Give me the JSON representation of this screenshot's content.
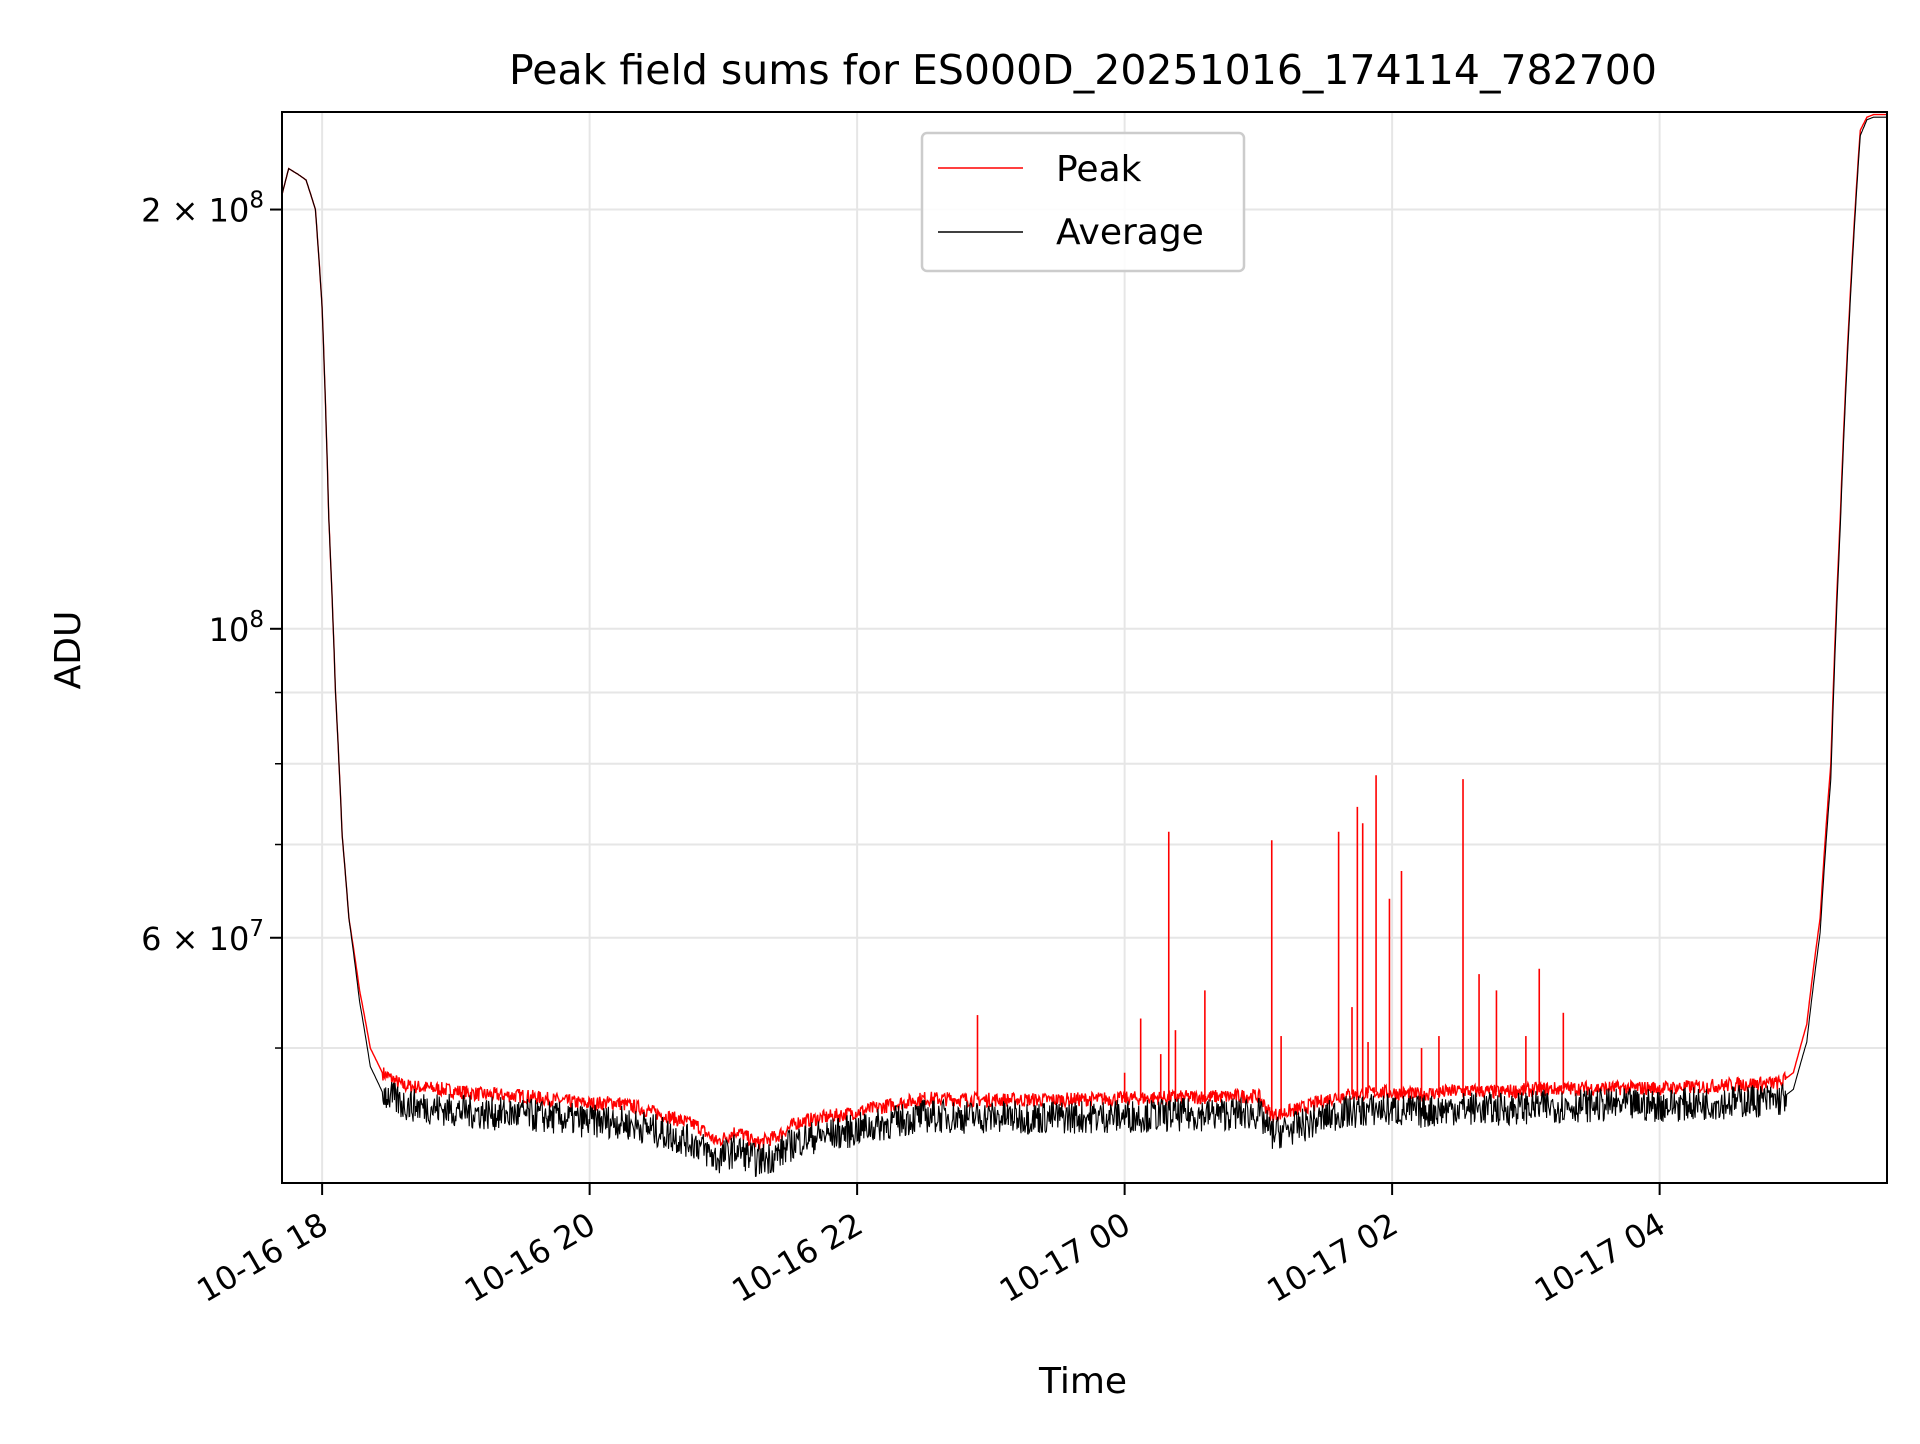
{
  "chart_data": {
    "type": "line",
    "title": "Peak field sums for ES000D_20251016_174114_782700",
    "xlabel": "Time",
    "ylabel": "ADU",
    "yscale": "log",
    "xlim": [
      17.7,
      29.7
    ],
    "ylim": [
      40000000,
      235000000
    ],
    "grid": true,
    "legend_position": "top-center",
    "x_ticks": [
      {
        "value": 18,
        "label": "10-16 18"
      },
      {
        "value": 20,
        "label": "10-16 20"
      },
      {
        "value": 22,
        "label": "10-16 22"
      },
      {
        "value": 24,
        "label": "10-17 00"
      },
      {
        "value": 26,
        "label": "10-17 02"
      },
      {
        "value": 28,
        "label": "10-17 04"
      }
    ],
    "y_major_ticks": [
      {
        "value": 60000000,
        "base": "6 × 10",
        "exp": "7"
      },
      {
        "value": 100000000,
        "base": "10",
        "exp": "8"
      },
      {
        "value": 200000000,
        "base": "2 × 10",
        "exp": "8"
      }
    ],
    "y_minor_ticks": [
      50000000,
      70000000,
      80000000,
      90000000
    ],
    "series": [
      {
        "name": "Peak",
        "color": "#ff0000",
        "x": [
          17.7,
          17.75,
          17.82,
          17.88,
          17.95,
          18.0,
          18.05,
          18.1,
          18.15,
          18.2,
          18.28,
          18.36,
          18.45,
          18.6,
          18.9,
          19.2,
          19.5,
          19.8,
          20.0,
          20.2,
          20.4,
          20.6,
          20.8,
          20.95,
          21.1,
          21.25,
          21.4,
          21.55,
          21.7,
          21.9,
          22.2,
          22.5,
          23.0,
          23.5,
          24.0,
          24.5,
          25.0,
          25.1,
          25.3,
          25.6,
          25.9,
          26.2,
          26.5,
          26.8,
          27.1,
          27.5,
          28.0,
          28.3,
          28.6,
          28.9,
          29.0,
          29.1,
          29.2,
          29.28,
          29.35,
          29.42,
          29.5,
          29.55,
          29.6,
          29.7
        ],
        "y": [
          205000000,
          214000000,
          212000000,
          210000000,
          200000000,
          170000000,
          120000000,
          90000000,
          71000000,
          62000000,
          55000000,
          50000000,
          48000000,
          47000000,
          46700000,
          46300000,
          46200000,
          45800000,
          45600000,
          45700000,
          45200000,
          44600000,
          44000000,
          42800000,
          43600000,
          42700000,
          43200000,
          44200000,
          44500000,
          44800000,
          45400000,
          46000000,
          45900000,
          45900000,
          46000000,
          46100000,
          46200000,
          44700000,
          45200000,
          46200000,
          46500000,
          46300000,
          46600000,
          46500000,
          46700000,
          46800000,
          46800000,
          46900000,
          47100000,
          47200000,
          48000000,
          52000000,
          62000000,
          80000000,
          120000000,
          170000000,
          228000000,
          233000000,
          234000000,
          234000000
        ]
      },
      {
        "name": "Average",
        "color": "#000000",
        "x": [
          17.7,
          17.75,
          17.82,
          17.88,
          17.95,
          18.0,
          18.05,
          18.1,
          18.15,
          18.2,
          18.28,
          18.36,
          18.45,
          18.6,
          18.9,
          19.2,
          19.5,
          19.8,
          20.0,
          20.2,
          20.4,
          20.6,
          20.8,
          20.95,
          21.1,
          21.25,
          21.4,
          21.55,
          21.7,
          21.9,
          22.2,
          22.5,
          23.0,
          23.5,
          24.0,
          24.5,
          25.0,
          25.1,
          25.3,
          25.6,
          25.9,
          26.2,
          26.5,
          26.8,
          27.1,
          27.5,
          28.0,
          28.3,
          28.6,
          28.9,
          29.0,
          29.1,
          29.2,
          29.28,
          29.35,
          29.42,
          29.5,
          29.55,
          29.6,
          29.7
        ],
        "y": [
          205000000,
          214000000,
          212000000,
          210000000,
          200000000,
          170000000,
          120000000,
          90000000,
          71000000,
          62000000,
          54000000,
          48500000,
          46500000,
          45600000,
          45200000,
          44900000,
          44800000,
          44500000,
          44300000,
          44300000,
          43900000,
          43300000,
          42700000,
          41600000,
          42300000,
          41500000,
          41900000,
          42900000,
          43200000,
          43500000,
          44100000,
          44700000,
          44600000,
          44600000,
          44700000,
          44800000,
          44900000,
          43400000,
          43900000,
          44900000,
          45200000,
          45000000,
          45300000,
          45200000,
          45400000,
          45500000,
          45500000,
          45600000,
          45800000,
          45900000,
          46700000,
          50500000,
          60500000,
          78000000,
          118000000,
          168000000,
          226000000,
          232000000,
          233000000,
          233000000
        ]
      }
    ],
    "spikes": {
      "x": [
        22.9,
        24.0,
        24.12,
        24.27,
        24.33,
        24.38,
        24.6,
        25.1,
        25.17,
        25.6,
        25.7,
        25.74,
        25.78,
        25.82,
        25.88,
        25.98,
        26.07,
        26.22,
        26.35,
        26.53,
        26.65,
        26.78,
        27.0,
        27.1,
        27.28
      ],
      "y": [
        52800000,
        48000000,
        52500000,
        49500000,
        71500000,
        51500000,
        55000000,
        70500000,
        51000000,
        71500000,
        53500000,
        74500000,
        72500000,
        50500000,
        78500000,
        64000000,
        67000000,
        50000000,
        51000000,
        78000000,
        56500000,
        55000000,
        51000000,
        57000000,
        53000000
      ]
    }
  }
}
